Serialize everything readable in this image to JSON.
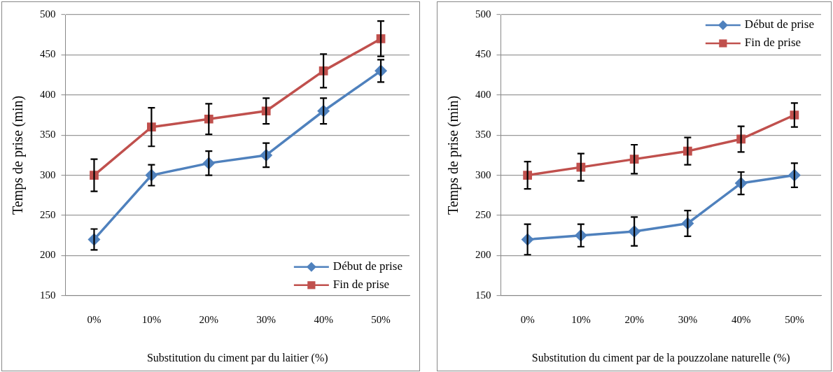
{
  "chart_data": [
    {
      "type": "line",
      "xlabel": "Substitution du ciment par du laitier (%)",
      "ylabel": "Temps de prise (min)",
      "categories": [
        "0%",
        "10%",
        "20%",
        "30%",
        "40%",
        "50%"
      ],
      "ylim": [
        150,
        500
      ],
      "yticks": [
        150,
        200,
        250,
        300,
        350,
        400,
        450,
        500
      ],
      "grid": "y",
      "legend": "bottom right",
      "series": [
        {
          "name": "Début de prise",
          "color": "#4f81bd",
          "marker": "diamond",
          "values": [
            220,
            300,
            315,
            325,
            380,
            430
          ],
          "errors": [
            13,
            13,
            15,
            15,
            16,
            14
          ]
        },
        {
          "name": "Fin de prise",
          "color": "#c0504d",
          "marker": "square",
          "values": [
            300,
            360,
            370,
            380,
            430,
            470
          ],
          "errors": [
            20,
            24,
            19,
            16,
            21,
            22
          ]
        }
      ]
    },
    {
      "type": "line",
      "xlabel": "Substitution du ciment par de la pouzzolane naturelle (%)",
      "ylabel": "Temps de prise (min)",
      "categories": [
        "0%",
        "10%",
        "20%",
        "30%",
        "40%",
        "50%"
      ],
      "ylim": [
        150,
        500
      ],
      "yticks": [
        150,
        200,
        250,
        300,
        350,
        400,
        450,
        500
      ],
      "grid": "y",
      "legend": "top right",
      "series": [
        {
          "name": "Début de prise",
          "color": "#4f81bd",
          "marker": "diamond",
          "values": [
            220,
            225,
            230,
            240,
            290,
            300
          ],
          "errors": [
            19,
            14,
            18,
            16,
            14,
            15
          ]
        },
        {
          "name": "Fin de prise",
          "color": "#c0504d",
          "marker": "square",
          "values": [
            300,
            310,
            320,
            330,
            345,
            375
          ],
          "errors": [
            17,
            17,
            18,
            17,
            16,
            15
          ]
        }
      ]
    }
  ]
}
